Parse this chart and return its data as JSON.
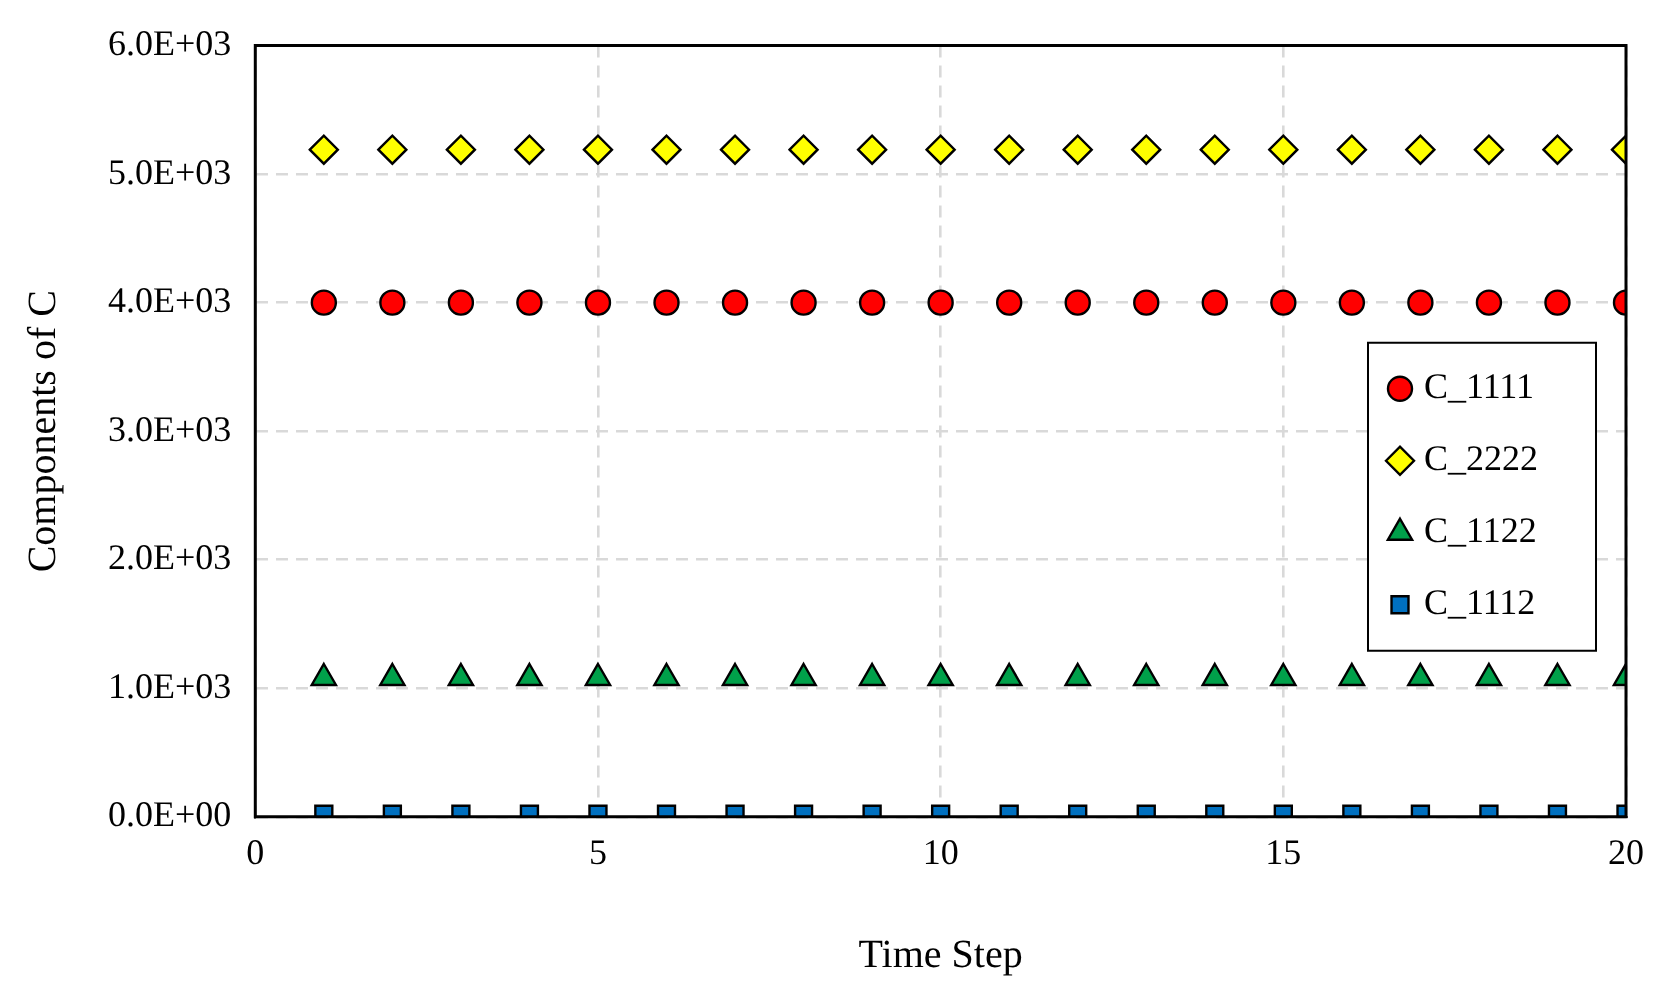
{
  "chart_data": {
    "type": "scatter",
    "xlabel": "Time Step",
    "ylabel": "Components of C",
    "x": [
      1,
      2,
      3,
      4,
      5,
      6,
      7,
      8,
      9,
      10,
      11,
      12,
      13,
      14,
      15,
      16,
      17,
      18,
      19,
      20
    ],
    "series": [
      {
        "name": "C_1111",
        "color": "#ff0000",
        "marker": "circle",
        "values": [
          4000,
          4000,
          4000,
          4000,
          4000,
          4000,
          4000,
          4000,
          4000,
          4000,
          4000,
          4000,
          4000,
          4000,
          4000,
          4000,
          4000,
          4000,
          4000,
          4000
        ]
      },
      {
        "name": "C_2222",
        "color": "#ffff00",
        "marker": "diamond",
        "values": [
          5190,
          5190,
          5190,
          5190,
          5190,
          5190,
          5190,
          5190,
          5190,
          5190,
          5190,
          5190,
          5190,
          5190,
          5190,
          5190,
          5190,
          5190,
          5190,
          5190
        ]
      },
      {
        "name": "C_1122",
        "color": "#00a04a",
        "marker": "triangle",
        "values": [
          1080,
          1080,
          1080,
          1080,
          1080,
          1080,
          1080,
          1080,
          1080,
          1080,
          1080,
          1080,
          1080,
          1080,
          1080,
          1080,
          1080,
          1080,
          1080,
          1080
        ]
      },
      {
        "name": "C_1112",
        "color": "#0070c0",
        "marker": "square",
        "values": [
          20,
          20,
          20,
          20,
          20,
          20,
          20,
          20,
          20,
          20,
          20,
          20,
          20,
          20,
          20,
          20,
          20,
          20,
          20,
          20
        ]
      }
    ],
    "xlim": [
      0,
      20
    ],
    "xticks": [
      0,
      5,
      10,
      15,
      20
    ],
    "ylim": [
      0,
      6000
    ],
    "yticks": [
      {
        "value": 0,
        "label": "0.0E+00"
      },
      {
        "value": 1000,
        "label": "1.0E+03"
      },
      {
        "value": 2000,
        "label": "2.0E+03"
      },
      {
        "value": 3000,
        "label": "3.0E+03"
      },
      {
        "value": 4000,
        "label": "4.0E+03"
      },
      {
        "value": 5000,
        "label": "5.0E+03"
      },
      {
        "value": 6000,
        "label": "6.0E+03"
      }
    ],
    "grid": true,
    "legend": "right"
  }
}
